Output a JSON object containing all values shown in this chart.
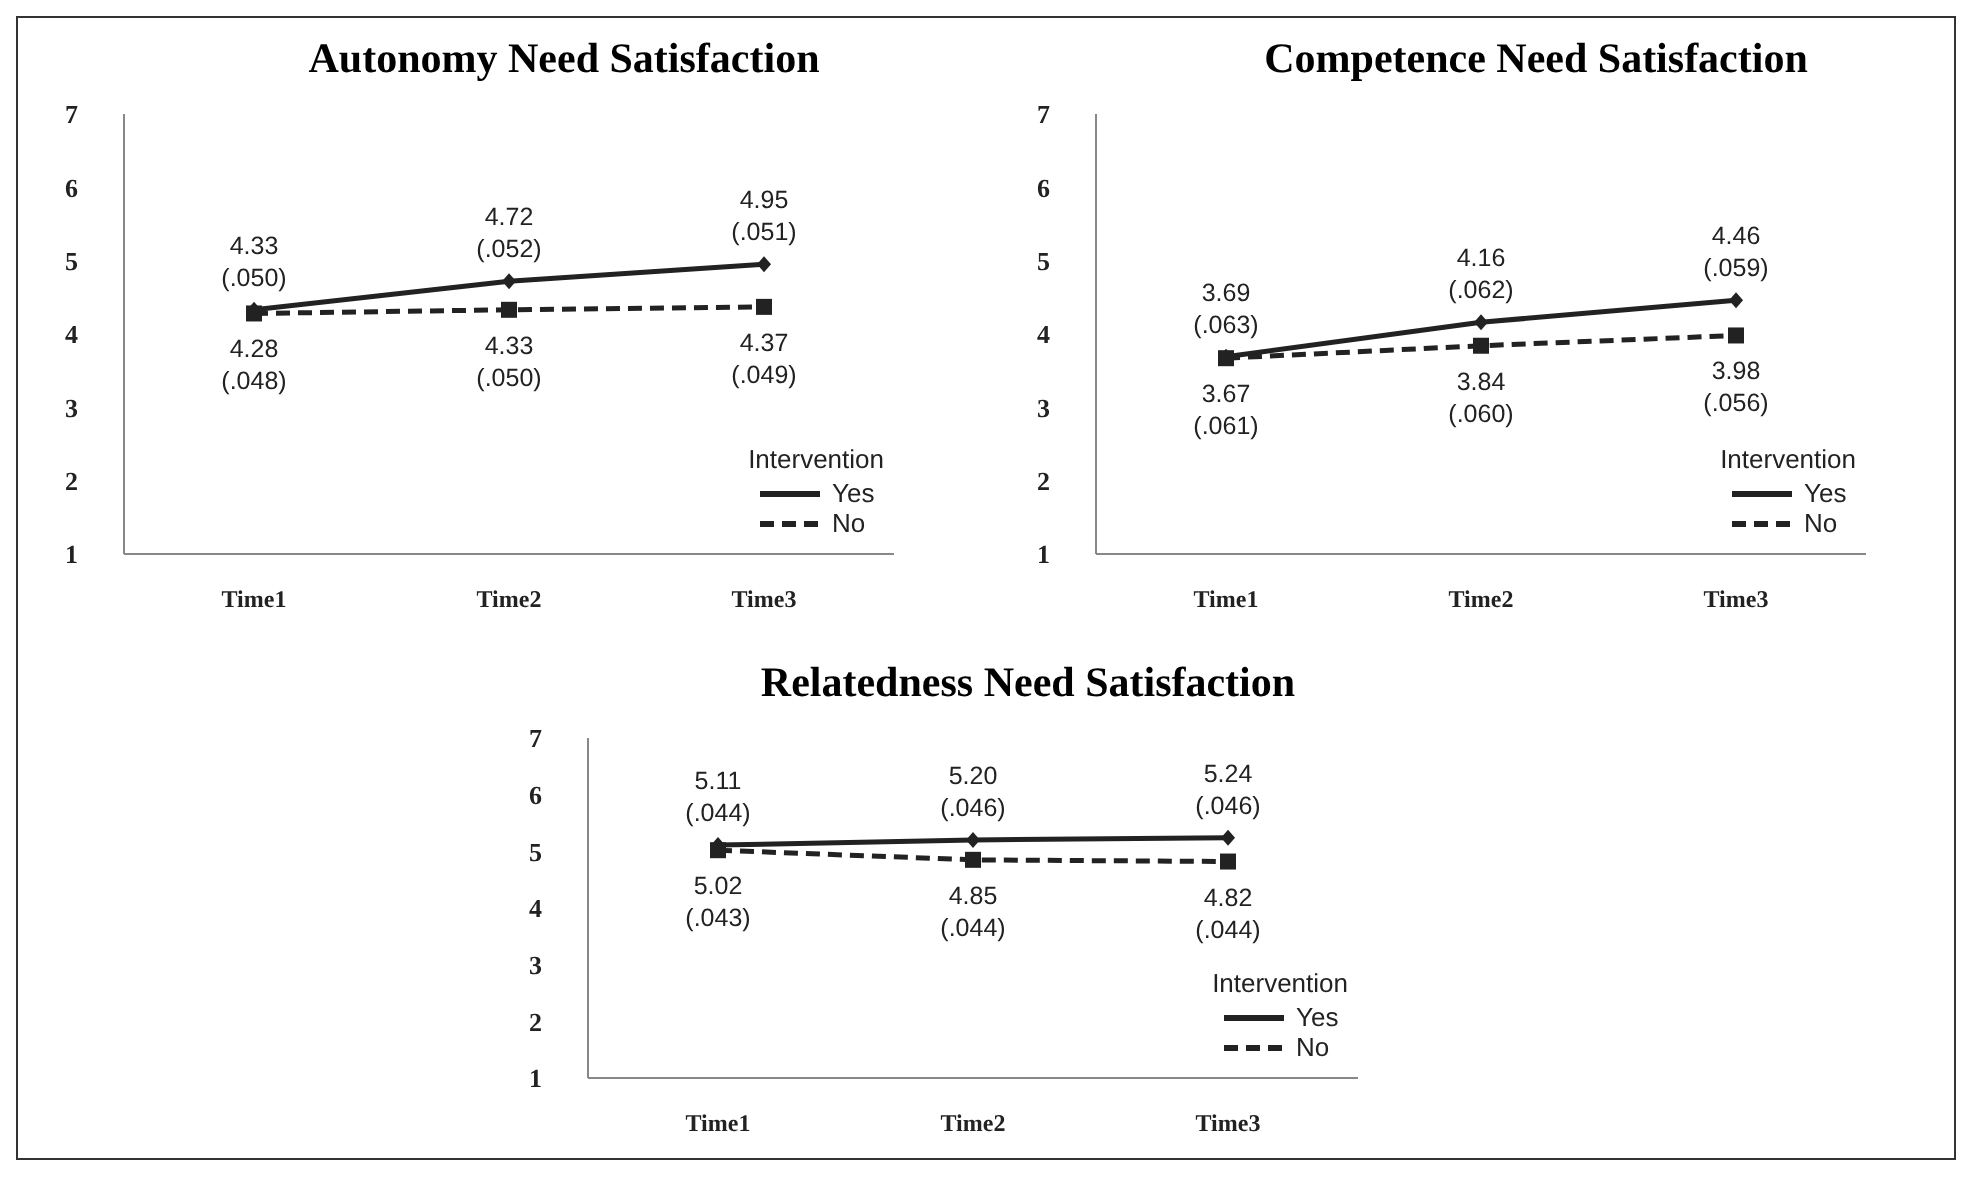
{
  "chart_data": [
    {
      "type": "line",
      "title": "Autonomy Need Satisfaction",
      "categories": [
        "Time1",
        "Time2",
        "Time3"
      ],
      "ylim": [
        1,
        7
      ],
      "yticks": [
        1,
        2,
        3,
        4,
        5,
        6,
        7
      ],
      "legend": "bottom right",
      "legend_title": "Intervention",
      "series": [
        {
          "name": "Yes",
          "color": "#222222",
          "values": [
            4.33,
            4.72,
            4.95
          ],
          "value_labels": [
            "4.33\n(.050)",
            "4.72\n(.052)",
            "4.95\n(.051)"
          ],
          "marker": "diamond",
          "line_style": "solid"
        },
        {
          "name": "No",
          "color": "#222222",
          "values": [
            4.28,
            4.33,
            4.37
          ],
          "value_labels": [
            "4.28\n(.048)",
            "4.33\n(.050)",
            "4.37\n(.049)"
          ],
          "marker": "square",
          "line_style": "dashed"
        }
      ]
    },
    {
      "type": "line",
      "title": "Competence Need Satisfaction",
      "categories": [
        "Time1",
        "Time2",
        "Time3"
      ],
      "ylim": [
        1,
        7
      ],
      "yticks": [
        1,
        2,
        3,
        4,
        5,
        6,
        7
      ],
      "legend": "bottom right",
      "legend_title": "Intervention",
      "series": [
        {
          "name": "Yes",
          "color": "#222222",
          "values": [
            3.69,
            4.16,
            4.46
          ],
          "value_labels": [
            "3.69\n(.063)",
            "4.16\n(.062)",
            "4.46\n(.059)"
          ],
          "marker": "diamond",
          "line_style": "solid"
        },
        {
          "name": "No",
          "color": "#222222",
          "values": [
            3.67,
            3.84,
            3.98
          ],
          "value_labels": [
            "3.67\n(.061)",
            "3.84\n(.060)",
            "3.98\n(.056)"
          ],
          "marker": "square",
          "line_style": "dashed"
        }
      ]
    },
    {
      "type": "line",
      "title": "Relatedness Need Satisfaction",
      "categories": [
        "Time1",
        "Time2",
        "Time3"
      ],
      "ylim": [
        1,
        7
      ],
      "yticks": [
        1,
        2,
        3,
        4,
        5,
        6,
        7
      ],
      "legend": "bottom right",
      "legend_title": "Intervention",
      "series": [
        {
          "name": "Yes",
          "color": "#222222",
          "values": [
            5.11,
            5.2,
            5.24
          ],
          "value_labels": [
            "5.11\n(.044)",
            "5.20\n(.046)",
            "5.24\n(.046)"
          ],
          "marker": "diamond",
          "line_style": "solid"
        },
        {
          "name": "No",
          "color": "#222222",
          "values": [
            5.02,
            4.85,
            4.82
          ],
          "value_labels": [
            "5.02\n(.043)",
            "4.85\n(.044)",
            "4.82\n(.044)"
          ],
          "marker": "square",
          "line_style": "dashed"
        }
      ]
    }
  ]
}
